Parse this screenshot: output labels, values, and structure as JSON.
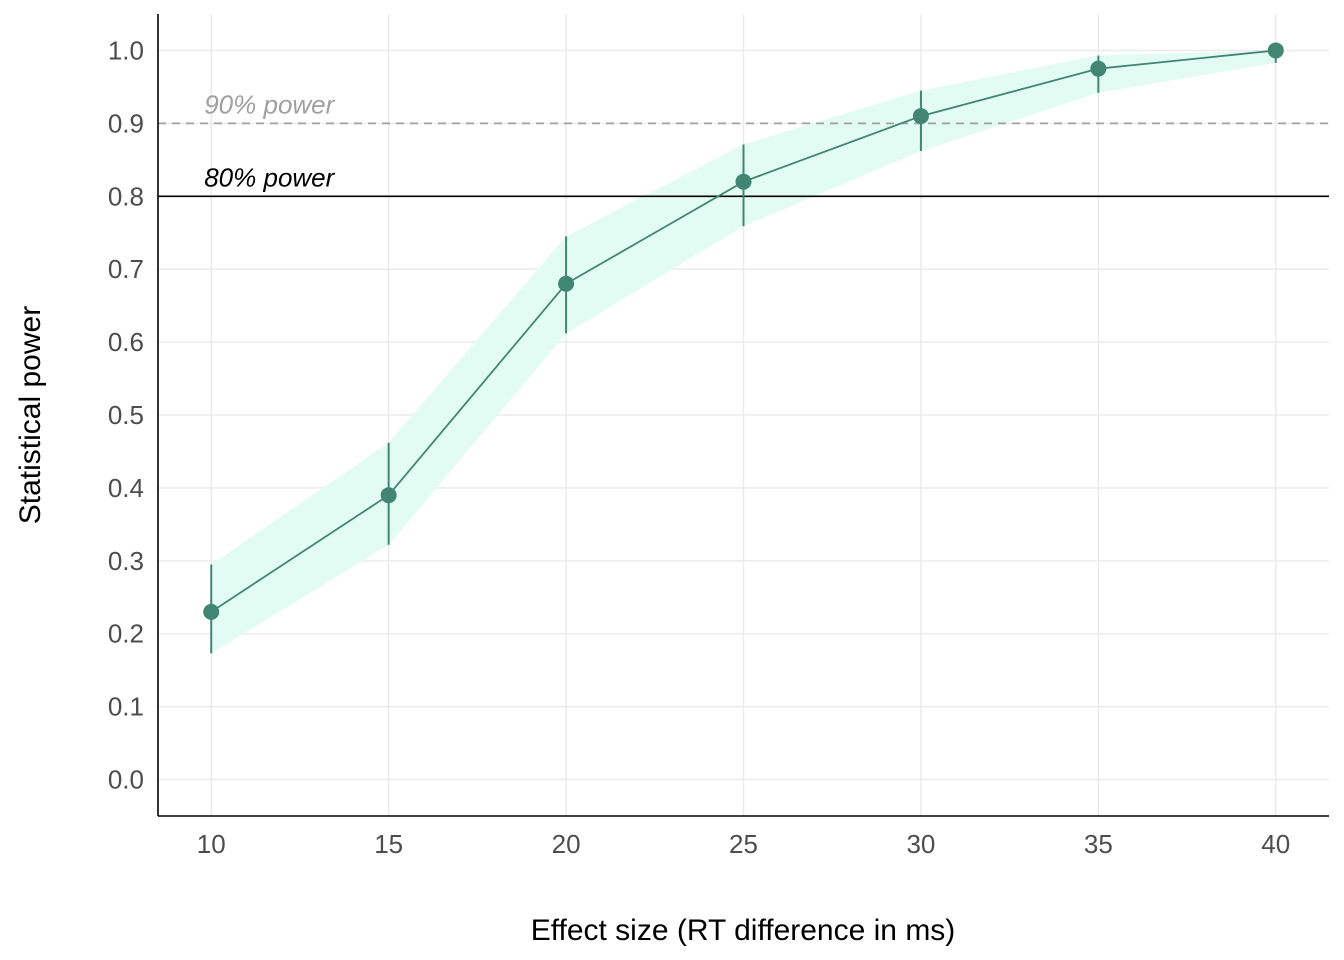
{
  "chart_data": {
    "type": "line",
    "xlabel": "Effect size (RT difference in ms)",
    "ylabel": "Statistical power",
    "x": [
      10,
      15,
      20,
      25,
      30,
      35,
      40
    ],
    "xticks": [
      "10",
      "15",
      "20",
      "25",
      "30",
      "35",
      "40"
    ],
    "xlim": [
      8.5,
      41.5
    ],
    "yticks": [
      "0.0",
      "0.1",
      "0.2",
      "0.3",
      "0.4",
      "0.5",
      "0.6",
      "0.7",
      "0.8",
      "0.9",
      "1.0"
    ],
    "ylim": [
      -0.05,
      1.05
    ],
    "grid": true,
    "series": [
      {
        "values": [
          0.23,
          0.39,
          0.68,
          0.82,
          0.91,
          0.975,
          1.0
        ],
        "lower": [
          0.173,
          0.322,
          0.612,
          0.759,
          0.862,
          0.942,
          0.983
        ],
        "upper": [
          0.295,
          0.462,
          0.745,
          0.871,
          0.945,
          0.993,
          1.0
        ],
        "color": "#418573",
        "band_color": "#e2fbf3"
      }
    ],
    "reference_lines": [
      {
        "y": 0.9,
        "label": "90% power",
        "style": "dashed",
        "color": "#a0a0a0"
      },
      {
        "y": 0.8,
        "label": "80% power",
        "style": "solid",
        "color": "#000000"
      }
    ]
  }
}
